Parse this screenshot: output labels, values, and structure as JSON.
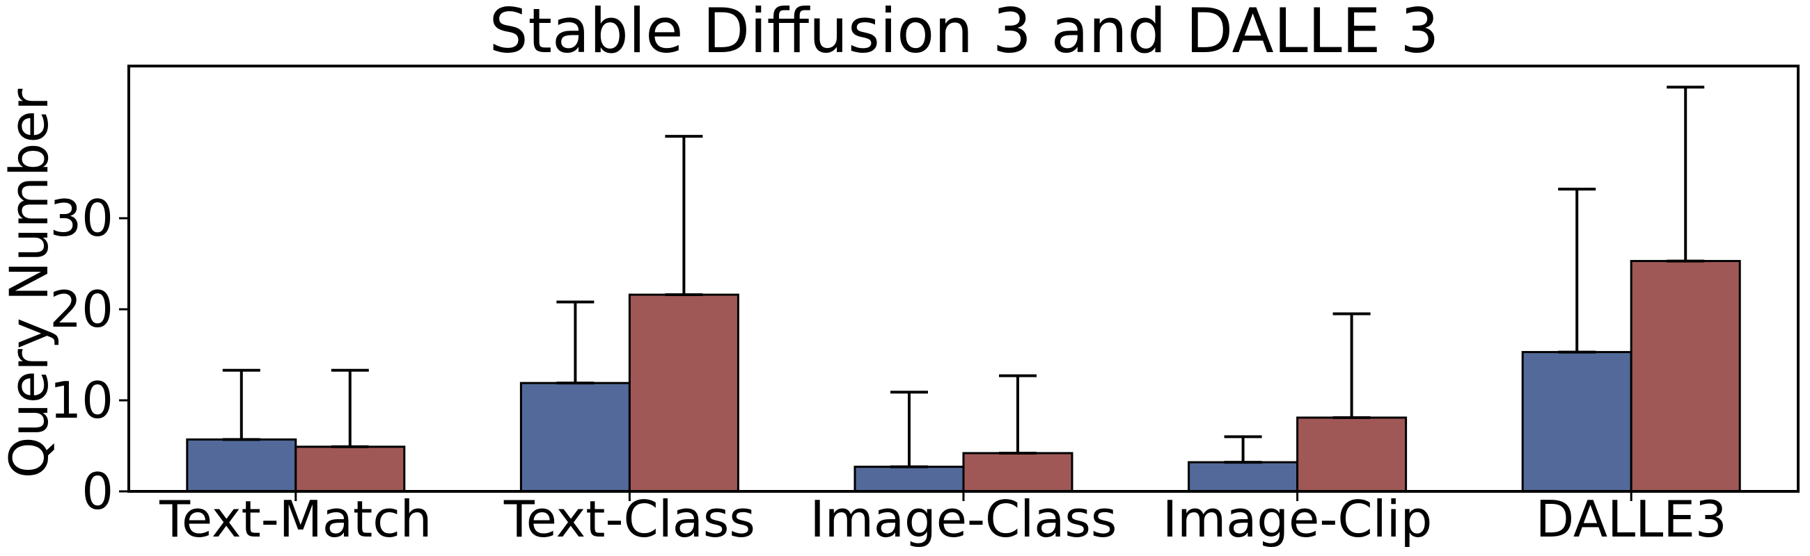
{
  "chart_data": {
    "type": "bar",
    "title": "Stable Diffusion 3 and DALLE 3",
    "xlabel": "",
    "ylabel": "Query Number",
    "categories": [
      "Text-Match",
      "Text-Class",
      "Image-Class",
      "Image-Clip",
      "DALLE3"
    ],
    "yticks": [
      "0",
      "10",
      "20",
      "30"
    ],
    "ylim": [
      0,
      46.5
    ],
    "grid": false,
    "series": [
      {
        "values": [
          5.7,
          11.9,
          2.7,
          3.2,
          15.3
        ],
        "error_upper": [
          13.3,
          20.8,
          10.9,
          6.0,
          33.2
        ],
        "color": "#52699a"
      },
      {
        "values": [
          4.9,
          21.6,
          4.2,
          8.1,
          25.3
        ],
        "error_upper": [
          13.3,
          39.0,
          12.7,
          19.5,
          44.4
        ],
        "color": "#a05857"
      }
    ]
  }
}
